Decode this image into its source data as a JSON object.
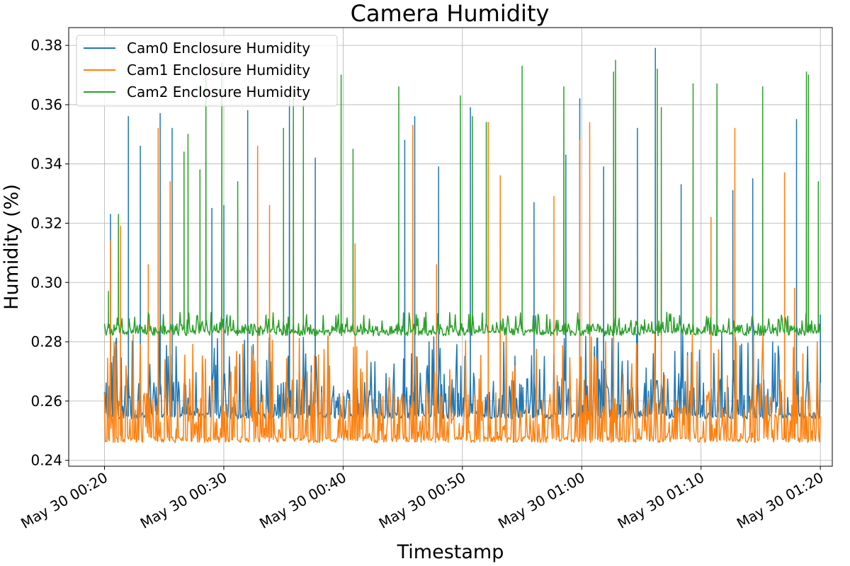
{
  "chart_data": {
    "type": "line",
    "title": "Camera Humidity",
    "xlabel": "Timestamp",
    "ylabel": "Humidity (%)",
    "x_range": [
      "2024-05-30 00:17:00",
      "2024-05-30 01:21:00"
    ],
    "ylim": [
      0.238,
      0.386
    ],
    "grid": true,
    "legend_position": "upper-left",
    "x_ticks": [
      {
        "time": "2024-05-30 00:20",
        "label": "May 30 00:20"
      },
      {
        "time": "2024-05-30 00:30",
        "label": "May 30 00:30"
      },
      {
        "time": "2024-05-30 00:40",
        "label": "May 30 00:40"
      },
      {
        "time": "2024-05-30 00:50",
        "label": "May 30 00:50"
      },
      {
        "time": "2024-05-30 01:00",
        "label": "May 30 01:00"
      },
      {
        "time": "2024-05-30 01:10",
        "label": "May 30 01:10"
      },
      {
        "time": "2024-05-30 01:20",
        "label": "May 30 01:20"
      }
    ],
    "y_ticks": [
      {
        "value": 0.24,
        "label": "0.24"
      },
      {
        "value": 0.26,
        "label": "0.26"
      },
      {
        "value": 0.28,
        "label": "0.28"
      },
      {
        "value": 0.3,
        "label": "0.30"
      },
      {
        "value": 0.32,
        "label": "0.32"
      },
      {
        "value": 0.34,
        "label": "0.34"
      },
      {
        "value": 0.36,
        "label": "0.36"
      },
      {
        "value": 0.38,
        "label": "0.38"
      }
    ],
    "series": [
      {
        "name": "Cam0 Enclosure Humidity",
        "color": "#1f77b4",
        "baseline": 0.255,
        "typical_range": [
          0.253,
          0.283
        ],
        "peaks": [
          {
            "time": "2024-05-30 00:20:30",
            "value": 0.323
          },
          {
            "time": "2024-05-30 00:22:00",
            "value": 0.356
          },
          {
            "time": "2024-05-30 00:23:00",
            "value": 0.346
          },
          {
            "time": "2024-05-30 00:24:40",
            "value": 0.357
          },
          {
            "time": "2024-05-30 00:25:40",
            "value": 0.352
          },
          {
            "time": "2024-05-30 00:29:00",
            "value": 0.325
          },
          {
            "time": "2024-05-30 00:30:00",
            "value": 0.326
          },
          {
            "time": "2024-05-30 00:32:00",
            "value": 0.358
          },
          {
            "time": "2024-05-30 00:35:30",
            "value": 0.364
          },
          {
            "time": "2024-05-30 00:37:40",
            "value": 0.342
          },
          {
            "time": "2024-05-30 00:45:10",
            "value": 0.348
          },
          {
            "time": "2024-05-30 00:46:00",
            "value": 0.356
          },
          {
            "time": "2024-05-30 00:48:00",
            "value": 0.339
          },
          {
            "time": "2024-05-30 00:50:40",
            "value": 0.359
          },
          {
            "time": "2024-05-30 00:56:00",
            "value": 0.327
          },
          {
            "time": "2024-05-30 00:58:40",
            "value": 0.343
          },
          {
            "time": "2024-05-30 00:59:50",
            "value": 0.362
          },
          {
            "time": "2024-05-30 01:01:50",
            "value": 0.339
          },
          {
            "time": "2024-05-30 01:04:40",
            "value": 0.352
          },
          {
            "time": "2024-05-30 01:06:10",
            "value": 0.379
          },
          {
            "time": "2024-05-30 01:08:20",
            "value": 0.333
          },
          {
            "time": "2024-05-30 01:12:40",
            "value": 0.331
          },
          {
            "time": "2024-05-30 01:14:20",
            "value": 0.335
          },
          {
            "time": "2024-05-30 01:18:00",
            "value": 0.355
          },
          {
            "time": "2024-05-30 01:20:00",
            "value": 0.289
          }
        ]
      },
      {
        "name": "Cam1 Enclosure Humidity",
        "color": "#ff7f0e",
        "baseline": 0.247,
        "typical_range": [
          0.245,
          0.283
        ],
        "peaks": [
          {
            "time": "2024-05-30 00:20:30",
            "value": 0.314
          },
          {
            "time": "2024-05-30 00:21:20",
            "value": 0.319
          },
          {
            "time": "2024-05-30 00:23:40",
            "value": 0.306
          },
          {
            "time": "2024-05-30 00:24:30",
            "value": 0.352
          },
          {
            "time": "2024-05-30 00:25:30",
            "value": 0.334
          },
          {
            "time": "2024-05-30 00:29:50",
            "value": 0.317
          },
          {
            "time": "2024-05-30 00:32:50",
            "value": 0.346
          },
          {
            "time": "2024-05-30 00:33:50",
            "value": 0.326
          },
          {
            "time": "2024-05-30 00:35:50",
            "value": 0.354
          },
          {
            "time": "2024-05-30 00:41:00",
            "value": 0.313
          },
          {
            "time": "2024-05-30 00:45:50",
            "value": 0.353
          },
          {
            "time": "2024-05-30 00:47:50",
            "value": 0.306
          },
          {
            "time": "2024-05-30 00:52:10",
            "value": 0.354
          },
          {
            "time": "2024-05-30 00:53:10",
            "value": 0.336
          },
          {
            "time": "2024-05-30 00:57:40",
            "value": 0.329
          },
          {
            "time": "2024-05-30 00:59:50",
            "value": 0.348
          },
          {
            "time": "2024-05-30 01:00:40",
            "value": 0.354
          },
          {
            "time": "2024-05-30 01:02:40",
            "value": 0.327
          },
          {
            "time": "2024-05-30 01:06:40",
            "value": 0.31
          },
          {
            "time": "2024-05-30 01:10:50",
            "value": 0.322
          },
          {
            "time": "2024-05-30 01:12:50",
            "value": 0.352
          },
          {
            "time": "2024-05-30 01:17:00",
            "value": 0.337
          },
          {
            "time": "2024-05-30 01:17:50",
            "value": 0.298
          }
        ]
      },
      {
        "name": "Cam2 Enclosure Humidity",
        "color": "#2ca02c",
        "baseline": 0.283,
        "typical_range": [
          0.282,
          0.29
        ],
        "peaks": [
          {
            "time": "2024-05-30 00:20:20",
            "value": 0.297
          },
          {
            "time": "2024-05-30 00:21:10",
            "value": 0.323
          },
          {
            "time": "2024-05-30 00:26:40",
            "value": 0.344
          },
          {
            "time": "2024-05-30 00:27:00",
            "value": 0.35
          },
          {
            "time": "2024-05-30 00:28:00",
            "value": 0.338
          },
          {
            "time": "2024-05-30 00:28:30",
            "value": 0.37
          },
          {
            "time": "2024-05-30 00:29:50",
            "value": 0.374
          },
          {
            "time": "2024-05-30 00:31:10",
            "value": 0.334
          },
          {
            "time": "2024-05-30 00:35:00",
            "value": 0.352
          },
          {
            "time": "2024-05-30 00:35:50",
            "value": 0.365
          },
          {
            "time": "2024-05-30 00:36:40",
            "value": 0.36
          },
          {
            "time": "2024-05-30 00:39:50",
            "value": 0.37
          },
          {
            "time": "2024-05-30 00:40:50",
            "value": 0.345
          },
          {
            "time": "2024-05-30 00:44:40",
            "value": 0.366
          },
          {
            "time": "2024-05-30 00:49:50",
            "value": 0.363
          },
          {
            "time": "2024-05-30 00:50:50",
            "value": 0.356
          },
          {
            "time": "2024-05-30 00:52:00",
            "value": 0.354
          },
          {
            "time": "2024-05-30 00:55:00",
            "value": 0.373
          },
          {
            "time": "2024-05-30 00:58:30",
            "value": 0.366
          },
          {
            "time": "2024-05-30 01:02:40",
            "value": 0.371
          },
          {
            "time": "2024-05-30 01:02:50",
            "value": 0.375
          },
          {
            "time": "2024-05-30 01:06:20",
            "value": 0.372
          },
          {
            "time": "2024-05-30 01:06:40",
            "value": 0.359
          },
          {
            "time": "2024-05-30 01:09:20",
            "value": 0.367
          },
          {
            "time": "2024-05-30 01:11:20",
            "value": 0.367
          },
          {
            "time": "2024-05-30 01:15:10",
            "value": 0.366
          },
          {
            "time": "2024-05-30 01:18:50",
            "value": 0.371
          },
          {
            "time": "2024-05-30 01:19:00",
            "value": 0.37
          },
          {
            "time": "2024-05-30 01:19:50",
            "value": 0.334
          }
        ]
      }
    ]
  }
}
